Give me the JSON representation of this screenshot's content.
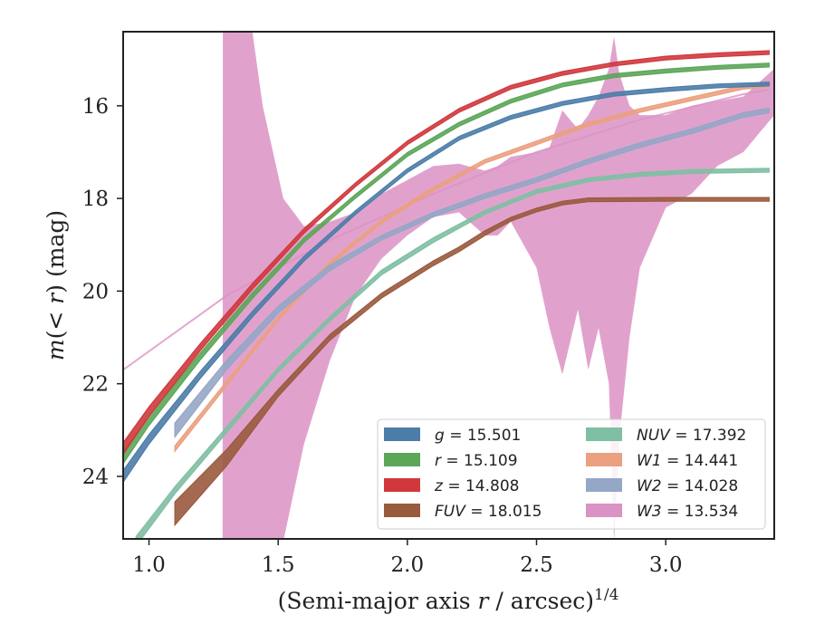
{
  "chart_data": {
    "type": "line",
    "xlabel": "(Semi-major axis r / arcsec)^1/4",
    "ylabel": "m(< r) (mag)",
    "xlim": [
      0.9,
      3.42
    ],
    "ylim": [
      25.35,
      14.4
    ],
    "y_inverted": true,
    "x_ticks": [
      1.0,
      1.5,
      2.0,
      2.5,
      3.0
    ],
    "x_tick_labels": [
      "1.0",
      "1.5",
      "2.0",
      "2.5",
      "3.0"
    ],
    "y_ticks": [
      16,
      18,
      20,
      22,
      24
    ],
    "y_tick_labels": [
      "16",
      "18",
      "20",
      "22",
      "24"
    ],
    "grid": false,
    "legend_position": "lower-right",
    "legend_columns": 2,
    "series": [
      {
        "key": "g",
        "name": "g = 15.501",
        "label_var": "g",
        "label_val": "15.501",
        "color": "#4c7da8",
        "x": [
          0.9,
          1.0,
          1.2,
          1.4,
          1.6,
          1.8,
          2.0,
          2.2,
          2.4,
          2.6,
          2.8,
          3.0,
          3.2,
          3.4
        ],
        "y": [
          24.0,
          23.2,
          21.8,
          20.5,
          19.3,
          18.3,
          17.4,
          16.7,
          16.25,
          15.95,
          15.75,
          15.65,
          15.57,
          15.53
        ],
        "width": [
          0.25,
          0.2,
          0.15,
          0.12,
          0.1,
          0.08,
          0.08,
          0.08,
          0.08,
          0.08,
          0.08,
          0.08,
          0.08,
          0.08
        ]
      },
      {
        "key": "r",
        "name": "r = 15.109",
        "label_var": "r",
        "label_val": "15.109",
        "color": "#5ba658",
        "x": [
          0.9,
          1.0,
          1.2,
          1.4,
          1.6,
          1.8,
          2.0,
          2.2,
          2.4,
          2.6,
          2.8,
          3.0,
          3.2,
          3.4
        ],
        "y": [
          23.6,
          22.8,
          21.4,
          20.1,
          18.9,
          17.95,
          17.05,
          16.4,
          15.9,
          15.55,
          15.35,
          15.25,
          15.17,
          15.12
        ],
        "width": [
          0.25,
          0.2,
          0.15,
          0.12,
          0.1,
          0.08,
          0.08,
          0.08,
          0.08,
          0.08,
          0.08,
          0.08,
          0.08,
          0.08
        ]
      },
      {
        "key": "z",
        "name": "z = 14.808",
        "label_var": "z",
        "label_val": "14.808",
        "color": "#d0383d",
        "x": [
          0.9,
          1.0,
          1.2,
          1.4,
          1.6,
          1.8,
          2.0,
          2.2,
          2.4,
          2.6,
          2.8,
          3.0,
          3.2,
          3.4
        ],
        "y": [
          23.4,
          22.6,
          21.2,
          19.9,
          18.7,
          17.7,
          16.8,
          16.1,
          15.6,
          15.3,
          15.1,
          14.97,
          14.9,
          14.85
        ],
        "width": [
          0.25,
          0.2,
          0.15,
          0.12,
          0.1,
          0.08,
          0.08,
          0.08,
          0.08,
          0.08,
          0.08,
          0.08,
          0.08,
          0.08
        ]
      },
      {
        "key": "FUV",
        "name": "FUV = 18.015",
        "label_var": "FUV",
        "label_val": "18.015",
        "color": "#9a5a3e",
        "x": [
          1.1,
          1.3,
          1.5,
          1.7,
          1.9,
          2.1,
          2.2,
          2.3,
          2.4,
          2.5,
          2.6,
          2.7,
          3.0,
          3.4
        ],
        "y": [
          24.8,
          23.6,
          22.2,
          21.0,
          20.1,
          19.4,
          19.1,
          18.75,
          18.45,
          18.25,
          18.1,
          18.03,
          18.02,
          18.02
        ],
        "width": [
          0.5,
          0.35,
          0.15,
          0.12,
          0.1,
          0.1,
          0.1,
          0.1,
          0.08,
          0.08,
          0.08,
          0.08,
          0.08,
          0.08
        ]
      },
      {
        "key": "NUV",
        "name": "NUV = 17.392",
        "label_var": "NUV",
        "label_val": "17.392",
        "color": "#7fbfa3",
        "x": [
          0.95,
          1.1,
          1.3,
          1.5,
          1.7,
          1.9,
          2.1,
          2.3,
          2.5,
          2.7,
          2.9,
          3.1,
          3.3,
          3.4
        ],
        "y": [
          25.4,
          24.3,
          23.0,
          21.7,
          20.6,
          19.6,
          18.9,
          18.3,
          17.85,
          17.6,
          17.48,
          17.42,
          17.4,
          17.39
        ],
        "width": [
          0.2,
          0.15,
          0.12,
          0.1,
          0.1,
          0.1,
          0.1,
          0.08,
          0.08,
          0.08,
          0.08,
          0.08,
          0.08,
          0.08
        ]
      },
      {
        "key": "W1",
        "name": "W1 = 14.441",
        "label_var": "W1",
        "label_val": "14.441",
        "color": "#eba07f",
        "x": [
          1.1,
          1.3,
          1.5,
          1.7,
          1.9,
          2.1,
          2.3,
          2.5,
          2.7,
          2.9,
          3.1,
          3.3,
          3.4
        ],
        "y": [
          23.4,
          22.0,
          20.6,
          19.4,
          18.5,
          17.8,
          17.2,
          16.8,
          16.4,
          16.1,
          15.85,
          15.6,
          15.55
        ],
        "width": [
          0.12,
          0.1,
          0.08,
          0.08,
          0.08,
          0.08,
          0.08,
          0.08,
          0.08,
          0.08,
          0.08,
          0.08,
          0.08
        ]
      },
      {
        "key": "W2",
        "name": "W2 = 14.028",
        "label_var": "W2",
        "label_val": "14.028",
        "color": "#95a6c7",
        "x": [
          1.1,
          1.3,
          1.5,
          1.7,
          1.9,
          2.1,
          2.3,
          2.5,
          2.7,
          2.9,
          3.1,
          3.3,
          3.4
        ],
        "y": [
          23.0,
          21.6,
          20.4,
          19.5,
          18.85,
          18.35,
          17.95,
          17.6,
          17.2,
          16.85,
          16.55,
          16.2,
          16.1
        ],
        "width": [
          0.3,
          0.2,
          0.15,
          0.12,
          0.1,
          0.1,
          0.1,
          0.1,
          0.1,
          0.1,
          0.1,
          0.1,
          0.1
        ]
      },
      {
        "key": "W3",
        "name": "W3 = 13.534",
        "label_var": "W3",
        "label_val": "13.534",
        "color": "#db92c4",
        "x": [
          0.9,
          1.3,
          1.7,
          2.1,
          2.5,
          2.9,
          3.3,
          3.4
        ],
        "y": [
          21.7,
          20.1,
          18.9,
          17.9,
          17.0,
          16.3,
          15.75,
          15.65
        ],
        "band_x": [
          1.285,
          1.286,
          1.33,
          1.4,
          1.44,
          1.48,
          1.52,
          1.6,
          1.7,
          1.8,
          1.9,
          2.0,
          2.1,
          2.2,
          2.3,
          2.35,
          2.4,
          2.5,
          2.55,
          2.6,
          2.63,
          2.66,
          2.7,
          2.74,
          2.78,
          2.8,
          2.82,
          2.86,
          2.9,
          3.0,
          3.1,
          3.2,
          3.3,
          3.42
        ],
        "band_low": [
          25.4,
          25.4,
          25.4,
          25.4,
          25.4,
          25.4,
          25.4,
          23.3,
          21.5,
          20.1,
          19.3,
          18.8,
          18.4,
          18.3,
          18.8,
          18.8,
          18.5,
          19.5,
          20.8,
          21.8,
          21.1,
          20.4,
          21.7,
          20.8,
          22.0,
          25.4,
          23.2,
          21.0,
          19.5,
          18.2,
          17.9,
          17.3,
          17.0,
          16.2
        ],
        "band_high": [
          25.4,
          14.4,
          14.4,
          14.4,
          16.0,
          17.0,
          18.0,
          18.6,
          18.5,
          18.3,
          17.9,
          17.6,
          17.3,
          17.25,
          17.4,
          17.3,
          17.1,
          17.0,
          16.9,
          16.1,
          16.3,
          16.5,
          16.2,
          15.8,
          15.2,
          14.5,
          15.3,
          16.0,
          16.2,
          16.2,
          16.0,
          15.9,
          15.8,
          15.2
        ]
      }
    ]
  }
}
